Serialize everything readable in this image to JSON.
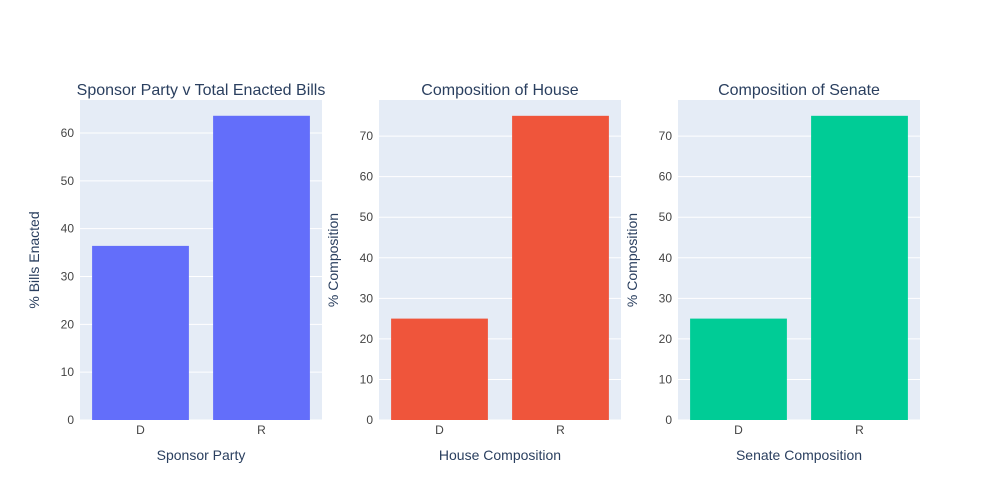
{
  "chart_data": [
    {
      "type": "bar",
      "title": "Sponsor Party v Total Enacted Bills",
      "xlabel": "Sponsor Party",
      "ylabel": "% Bills Enacted",
      "categories": [
        "D",
        "R"
      ],
      "values": [
        36.4,
        63.6
      ],
      "ylim": [
        0,
        66.9
      ],
      "yticks": [
        0,
        10,
        20,
        30,
        40,
        50,
        60
      ],
      "color": "#636efa"
    },
    {
      "type": "bar",
      "title": "Composition of House",
      "xlabel": "House Composition",
      "ylabel": "% Composition",
      "categories": [
        "D",
        "R"
      ],
      "values": [
        25,
        75
      ],
      "ylim": [
        0,
        78.9
      ],
      "yticks": [
        0,
        10,
        20,
        30,
        40,
        50,
        60,
        70
      ],
      "color": "#ef553b"
    },
    {
      "type": "bar",
      "title": "Composition of Senate",
      "xlabel": "Senate Composition",
      "ylabel": "% Composition",
      "categories": [
        "D",
        "R"
      ],
      "values": [
        25,
        75
      ],
      "ylim": [
        0,
        78.9
      ],
      "yticks": [
        0,
        10,
        20,
        30,
        40,
        50,
        60,
        70
      ],
      "color": "#00cc96"
    }
  ],
  "style": {
    "plot_background": "#e5ecf6",
    "gridline": "#ffffff",
    "text_color": "#2a3f5f",
    "tick_color": "#444444"
  },
  "grid": true,
  "legend": "none"
}
